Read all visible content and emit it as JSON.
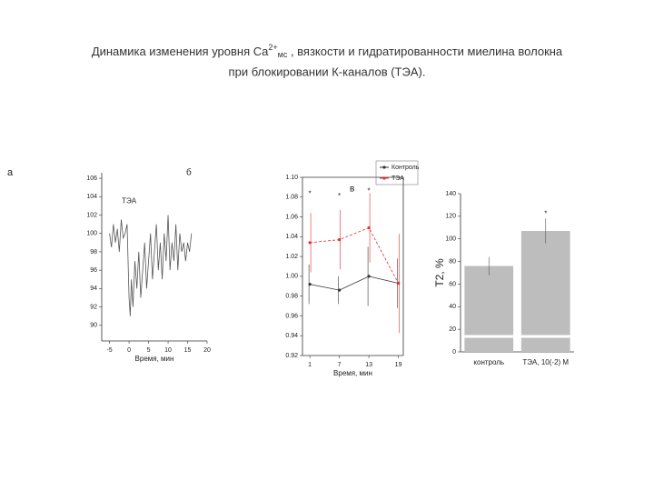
{
  "title": {
    "part1": "Динамика изменения уровня Ca",
    "sup": "2+",
    "sub": "мс",
    "part2": " , вязкости и гидратированности миелина волокна",
    "line2": "при блокировании К-каналов (ТЭА)."
  },
  "label_a": "а",
  "chart_data": [
    {
      "type": "line",
      "panel_label": "б",
      "xlabel": "Время, мин",
      "annotations": [
        {
          "text": "ТЭА",
          "x": 0,
          "y": 103.5
        }
      ],
      "xlim": [
        -7,
        20
      ],
      "ylim": [
        88.3,
        106.6
      ],
      "xticks": [
        -5,
        0,
        5,
        10,
        15,
        20
      ],
      "yticks": [
        90,
        92,
        94,
        96,
        98,
        100,
        102,
        104,
        106
      ],
      "x": [
        -5,
        -4.5,
        -4,
        -3.5,
        -3,
        -2.5,
        -2,
        -1.5,
        -1,
        -0.5,
        0,
        0.3,
        0.6,
        1,
        1.5,
        2,
        2.5,
        3,
        3.5,
        4,
        4.5,
        5,
        5.5,
        6,
        6.5,
        7,
        7.5,
        8,
        8.5,
        9,
        9.5,
        10,
        10.5,
        11,
        11.5,
        12,
        12.5,
        13,
        13.5,
        14,
        14.5,
        15,
        15.5,
        16
      ],
      "series": [
        {
          "color": "#555555",
          "values": [
            100,
            98.5,
            101,
            99,
            100.5,
            98,
            101.5,
            99.5,
            100,
            101,
            93,
            91,
            95,
            92,
            97,
            94,
            98,
            93,
            96,
            99,
            94,
            97,
            100,
            95,
            98,
            101,
            96,
            99,
            95,
            100,
            97,
            102,
            96,
            99,
            97,
            101,
            96,
            100,
            98,
            99,
            97,
            99,
            98,
            100
          ]
        }
      ]
    },
    {
      "type": "line",
      "panel_label": "в",
      "xlabel": "Время, мин",
      "markers": true,
      "annotations": [
        {
          "text": "*",
          "x": 1,
          "y": 1.083
        },
        {
          "text": "*",
          "x": 7,
          "y": 1.081
        },
        {
          "text": "*",
          "x": 13,
          "y": 1.086
        }
      ],
      "xlim": [
        -0.5,
        20
      ],
      "ylim": [
        0.92,
        1.1
      ],
      "xticks": [
        1,
        7,
        13,
        19
      ],
      "yticks": [
        {
          "value": 0.92,
          "label": "0.92"
        },
        {
          "value": 0.94,
          "label": "0.94"
        },
        {
          "value": 0.96,
          "label": "0.96"
        },
        {
          "value": 0.98,
          "label": "0.98"
        },
        {
          "value": 1.0,
          "label": "1.00"
        },
        {
          "value": 1.02,
          "label": "1.02"
        },
        {
          "value": 1.04,
          "label": "1.04"
        },
        {
          "value": 1.06,
          "label": "1.06"
        },
        {
          "value": 1.08,
          "label": "1.08"
        },
        {
          "value": 1.1,
          "label": "1.10"
        }
      ],
      "x": [
        1,
        7,
        13,
        19
      ],
      "series": [
        {
          "name": "Контроль",
          "color": "#333333",
          "values": [
            0.992,
            0.986,
            1.0,
            0.993
          ],
          "errors": [
            0.02,
            0.014,
            0.03,
            0.025
          ]
        },
        {
          "name": "ТЭА",
          "color": "#e03030",
          "values": [
            1.034,
            1.037,
            1.049,
            0.993
          ],
          "errors": [
            0.03,
            0.03,
            0.035,
            0.05
          ]
        }
      ]
    },
    {
      "type": "bar",
      "ylabel": "T2, %",
      "annotations": [
        {
          "text": "*",
          "x": 1,
          "y": 122
        }
      ],
      "ylim": [
        0,
        140
      ],
      "yticks": [
        0,
        20,
        40,
        60,
        80,
        100,
        120,
        140
      ],
      "categories": [
        "контроль",
        "ТЭА, 10(-2) М"
      ],
      "color": "#bdbdbd",
      "values": [
        76,
        107
      ],
      "errors": [
        8,
        11
      ]
    }
  ]
}
